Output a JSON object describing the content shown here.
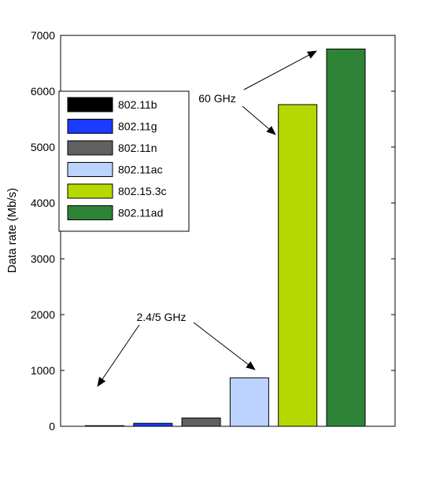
{
  "chart_data": {
    "type": "bar",
    "categories": [
      "802.11b",
      "802.11g",
      "802.11n",
      "802.11ac",
      "802.15.3c",
      "802.11ad"
    ],
    "values": [
      11,
      54,
      150,
      867,
      5760,
      6757
    ],
    "colors": [
      "#000000",
      "#1a3cff",
      "#606060",
      "#bcd3ff",
      "#b5d800",
      "#2e8336"
    ],
    "ylabel": "Data rate (Mb/s)",
    "xlabel": "",
    "ylim": [
      0,
      7000
    ],
    "yticks": [
      0,
      1000,
      2000,
      3000,
      4000,
      5000,
      6000,
      7000
    ],
    "grid": false,
    "legend": {
      "placement": "top-left",
      "entries": [
        "802.11b",
        "802.11g",
        "802.11n",
        "802.11ac",
        "802.15.3c",
        "802.11ad"
      ]
    },
    "annotations": [
      {
        "text": "2.4/5 GHz",
        "points_to": [
          "802.11b",
          "802.11ac"
        ]
      },
      {
        "text": "60 GHz",
        "points_to": [
          "802.15.3c",
          "802.11ad"
        ]
      }
    ]
  }
}
